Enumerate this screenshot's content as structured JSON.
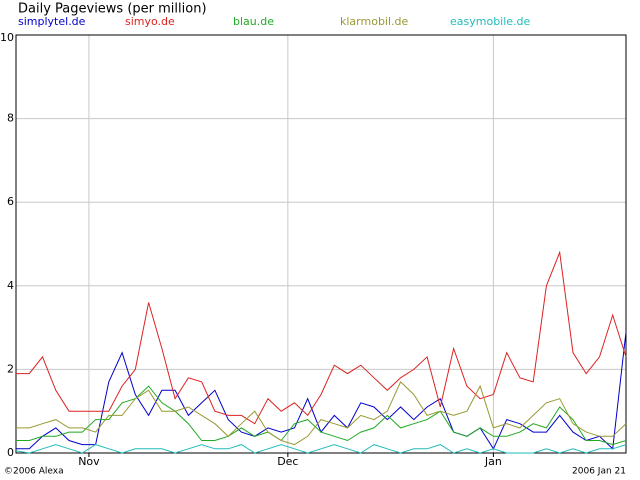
{
  "chart_data": {
    "type": "line",
    "title": "Daily Pageviews (per million)",
    "source": "©2006 Alexa",
    "date_label": "2006 Jan 21",
    "x": [
      0,
      2,
      4,
      6,
      8,
      10,
      12,
      14,
      16,
      18,
      20,
      22,
      24,
      26,
      28,
      30,
      32,
      34,
      36,
      38,
      40,
      42,
      44,
      46,
      48,
      50,
      52,
      54,
      56,
      58,
      60,
      62,
      64,
      66,
      68,
      70,
      72,
      74,
      76,
      78,
      80,
      82,
      84,
      86,
      88,
      90,
      92
    ],
    "xlim": [
      0,
      92
    ],
    "xticks": [
      {
        "value": 11,
        "label": "Nov"
      },
      {
        "value": 41,
        "label": "Dec"
      },
      {
        "value": 72,
        "label": "Jan"
      }
    ],
    "ylim": [
      0,
      10
    ],
    "yticks": [
      0,
      2,
      4,
      6,
      8,
      10
    ],
    "grid": true,
    "series": [
      {
        "name": "simplytel.de",
        "color": "#0000cc",
        "values": [
          0.1,
          0.1,
          0.4,
          0.6,
          0.3,
          0.2,
          0.2,
          1.7,
          2.4,
          1.4,
          0.9,
          1.5,
          1.5,
          0.9,
          1.2,
          1.5,
          0.8,
          0.5,
          0.4,
          0.6,
          0.5,
          0.6,
          1.3,
          0.5,
          0.9,
          0.6,
          1.2,
          1.1,
          0.8,
          1.1,
          0.8,
          1.1,
          1.3,
          0.5,
          0.4,
          0.6,
          0.1,
          0.8,
          0.7,
          0.5,
          0.5,
          0.9,
          0.5,
          0.3,
          0.4,
          0.1,
          2.9
        ]
      },
      {
        "name": "simyo.de",
        "color": "#dd2222",
        "values": [
          1.9,
          1.9,
          2.3,
          1.5,
          1.0,
          1.0,
          1.0,
          1.0,
          1.6,
          2.0,
          3.6,
          2.5,
          1.3,
          1.8,
          1.7,
          1.0,
          0.9,
          0.9,
          0.7,
          1.3,
          1.0,
          1.2,
          0.9,
          1.4,
          2.1,
          1.9,
          2.1,
          1.8,
          1.5,
          1.8,
          2.0,
          2.3,
          1.1,
          2.5,
          1.6,
          1.3,
          1.4,
          2.4,
          1.8,
          1.7,
          4.0,
          4.8,
          2.4,
          1.9,
          2.3,
          3.3,
          2.3
        ]
      },
      {
        "name": "blau.de",
        "color": "#22aa22",
        "values": [
          0.3,
          0.3,
          0.4,
          0.4,
          0.5,
          0.5,
          0.8,
          0.8,
          1.2,
          1.3,
          1.6,
          1.2,
          1.0,
          0.7,
          0.3,
          0.3,
          0.4,
          0.6,
          0.4,
          0.5,
          0.3,
          0.7,
          0.8,
          0.5,
          0.4,
          0.3,
          0.5,
          0.6,
          0.9,
          0.6,
          0.7,
          0.8,
          1.0,
          0.5,
          0.4,
          0.6,
          0.4,
          0.4,
          0.5,
          0.7,
          0.6,
          1.1,
          0.8,
          0.3,
          0.3,
          0.2,
          0.3
        ]
      },
      {
        "name": "klarmobil.de",
        "color": "#999933",
        "values": [
          0.6,
          0.6,
          0.7,
          0.8,
          0.6,
          0.6,
          0.5,
          0.9,
          0.9,
          1.3,
          1.5,
          1.0,
          1.0,
          1.1,
          0.9,
          0.7,
          0.4,
          0.7,
          1.0,
          0.5,
          0.3,
          0.2,
          0.4,
          0.8,
          0.7,
          0.6,
          0.9,
          0.8,
          1.0,
          1.7,
          1.4,
          0.9,
          1.0,
          0.9,
          1.0,
          1.6,
          0.6,
          0.7,
          0.6,
          0.9,
          1.2,
          1.3,
          0.7,
          0.5,
          0.4,
          0.4,
          0.7
        ]
      },
      {
        "name": "easymobile.de",
        "color": "#22bbbb",
        "values": [
          0.05,
          0.0,
          0.1,
          0.2,
          0.1,
          0.0,
          0.2,
          0.1,
          0.0,
          0.1,
          0.1,
          0.1,
          0.0,
          0.1,
          0.2,
          0.1,
          0.1,
          0.2,
          0.0,
          0.1,
          0.2,
          0.1,
          0.0,
          0.1,
          0.2,
          0.1,
          0.0,
          0.2,
          0.1,
          0.0,
          0.1,
          0.1,
          0.2,
          0.0,
          0.1,
          0.0,
          0.1,
          0.0,
          0.0,
          0.0,
          0.1,
          0.0,
          0.1,
          0.0,
          0.1,
          0.1,
          0.2
        ]
      }
    ]
  }
}
